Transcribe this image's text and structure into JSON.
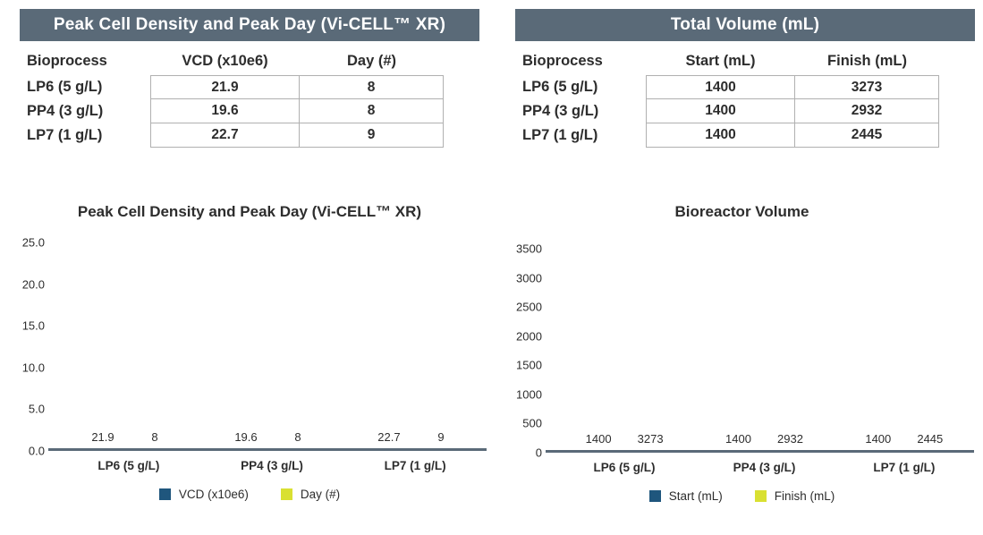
{
  "colors": {
    "header_bg": "#5a6a78",
    "axis_line": "#5a6a78",
    "series_blue": "#1f567d",
    "series_yellow": "#d9e032",
    "table_border": "#b0b0b0",
    "text": "#2d2d2d"
  },
  "tables": [
    {
      "header": "Peak Cell Density and Peak Day (Vi-CELL™ XR)",
      "columns": [
        "Bioprocess",
        "VCD (x10e6)",
        "Day (#)"
      ],
      "rows": [
        [
          "LP6 (5 g/L)",
          "21.9",
          "8"
        ],
        [
          "PP4 (3 g/L)",
          "19.6",
          "8"
        ],
        [
          "LP7 (1 g/L)",
          "22.7",
          "9"
        ]
      ]
    },
    {
      "header": "Total Volume (mL)",
      "columns": [
        "Bioprocess",
        "Start (mL)",
        "Finish (mL)"
      ],
      "rows": [
        [
          "LP6 (5 g/L)",
          "1400",
          "3273"
        ],
        [
          "PP4 (3 g/L)",
          "1400",
          "2932"
        ],
        [
          "LP7 (1 g/L)",
          "1400",
          "2445"
        ]
      ]
    }
  ],
  "chart_data": [
    {
      "type": "bar",
      "title": "Peak Cell Density and Peak Day (Vi-CELL™ XR)",
      "categories": [
        "LP6 (5 g/L)",
        "PP4 (3 g/L)",
        "LP7 (1 g/L)"
      ],
      "series": [
        {
          "name": "VCD (x10e6)",
          "color": "#1f567d",
          "values": [
            21.9,
            19.6,
            22.7
          ],
          "labels": [
            "21.9",
            "19.6",
            "22.7"
          ]
        },
        {
          "name": "Day (#)",
          "color": "#d9e032",
          "values": [
            8,
            8,
            9
          ],
          "labels": [
            "8",
            "8",
            "9"
          ]
        }
      ],
      "xlabel": "",
      "ylabel": "",
      "ylim": [
        0,
        25
      ],
      "yticks": [
        "0.0",
        "5.0",
        "10.0",
        "15.0",
        "20.0",
        "25.0"
      ],
      "grid": false,
      "legend_position": "bottom"
    },
    {
      "type": "bar",
      "title": "Bioreactor Volume",
      "categories": [
        "LP6 (5 g/L)",
        "PP4 (3 g/L)",
        "LP7 (1 g/L)"
      ],
      "series": [
        {
          "name": "Start (mL)",
          "color": "#1f567d",
          "values": [
            1400,
            1400,
            1400
          ],
          "labels": [
            "1400",
            "1400",
            "1400"
          ]
        },
        {
          "name": "Finish (mL)",
          "color": "#d9e032",
          "values": [
            3273,
            2932,
            2445
          ],
          "labels": [
            "3273",
            "2932",
            "2445"
          ]
        }
      ],
      "xlabel": "",
      "ylabel": "",
      "ylim": [
        0,
        3500
      ],
      "yticks": [
        "0",
        "500",
        "1000",
        "1500",
        "2000",
        "2500",
        "3000",
        "3500"
      ],
      "grid": false,
      "legend_position": "bottom"
    }
  ]
}
